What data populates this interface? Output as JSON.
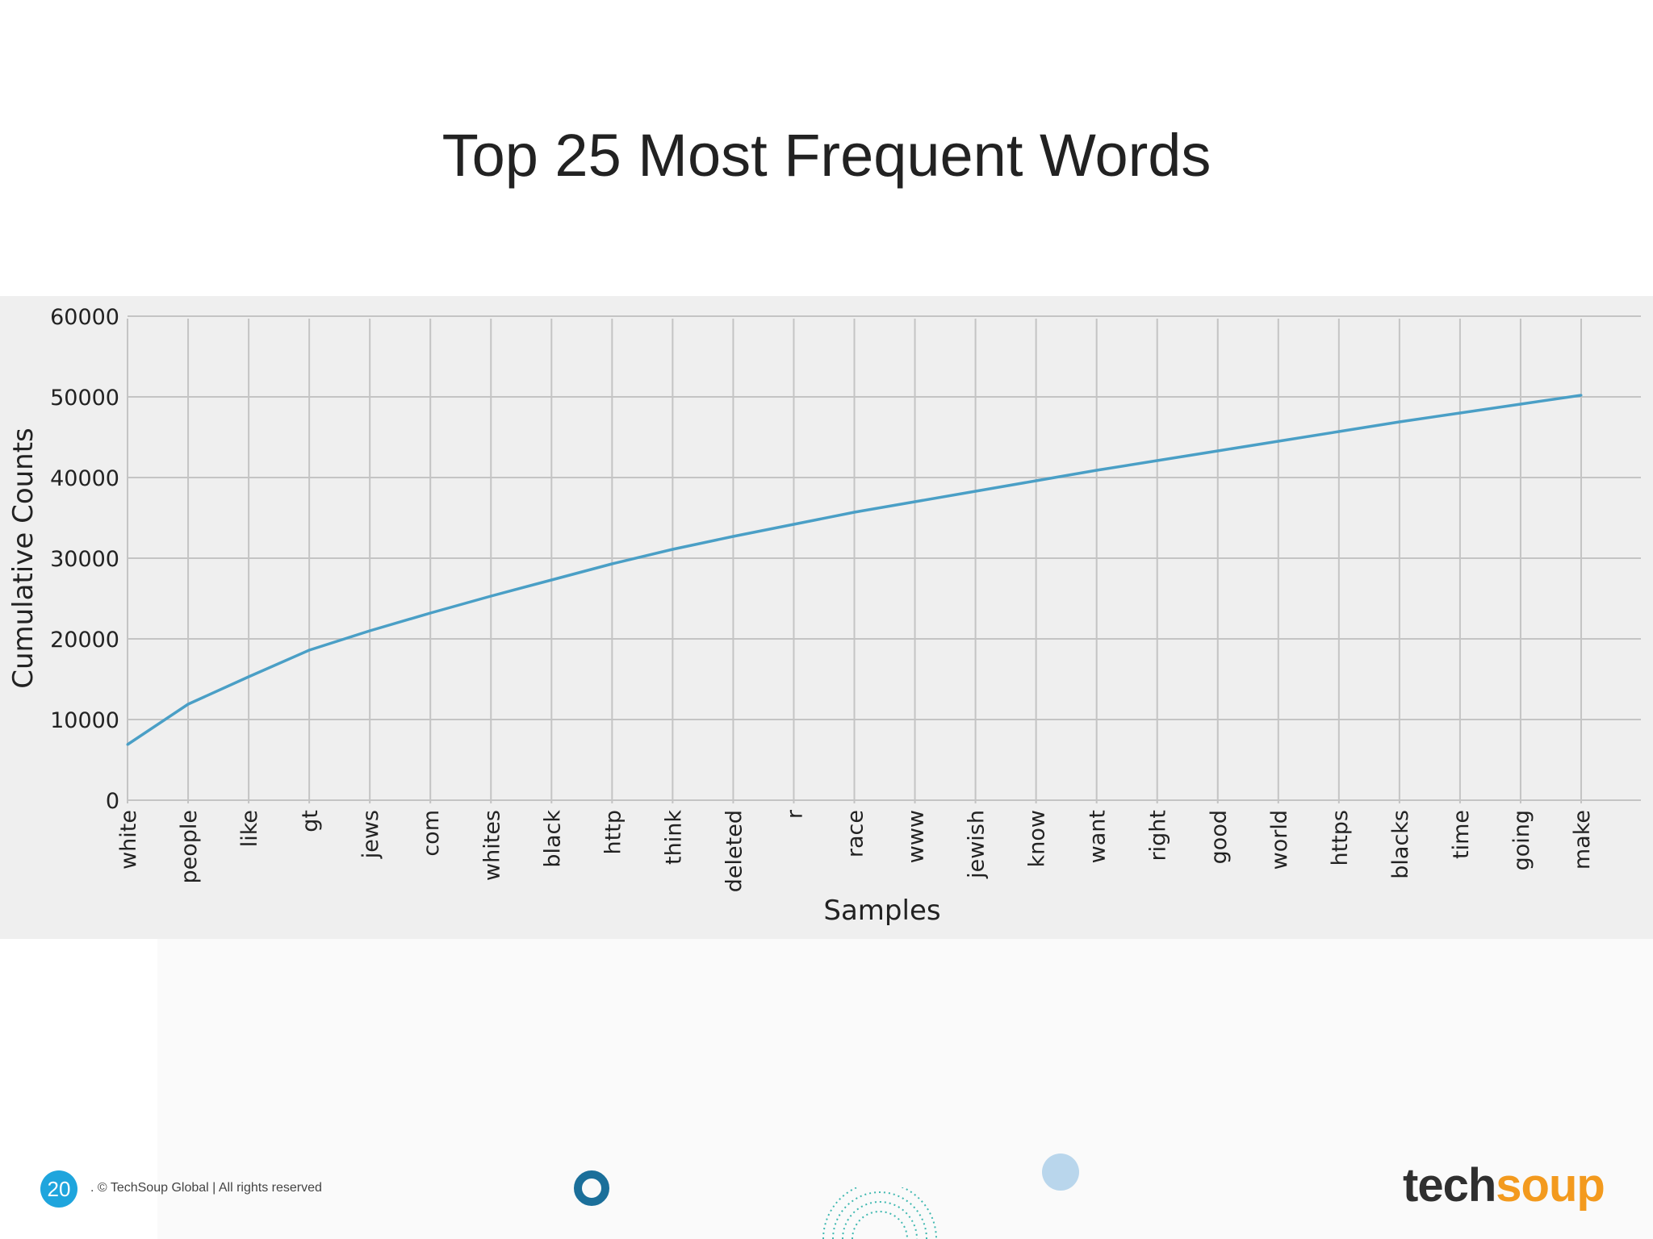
{
  "slide": {
    "title": "Top 25 Most Frequent Words",
    "page_number": "20",
    "copyright": ". © TechSoup Global | All rights reserved",
    "logo_part1": "tech",
    "logo_part2": "soup"
  },
  "colors": {
    "line": "#4a9fc6",
    "grid": "#c4c4c4",
    "chart_bg": "#efefef",
    "badge": "#1fa5dd",
    "logo_orange": "#f39a1e"
  },
  "chart_data": {
    "type": "line",
    "title": "",
    "xlabel": "Samples",
    "ylabel": "Cumulative Counts",
    "ylim": [
      0,
      60000
    ],
    "yticks": [
      0,
      10000,
      20000,
      30000,
      40000,
      50000,
      60000
    ],
    "grid": true,
    "categories": [
      "white",
      "people",
      "like",
      "gt",
      "jews",
      "com",
      "whites",
      "black",
      "http",
      "think",
      "deleted",
      "r",
      "race",
      "www",
      "jewish",
      "know",
      "want",
      "right",
      "good",
      "world",
      "https",
      "blacks",
      "time",
      "going",
      "make"
    ],
    "series": [
      {
        "name": "Cumulative Counts",
        "values": [
          6900,
          11900,
          15300,
          18600,
          21000,
          23200,
          25300,
          27300,
          29300,
          31100,
          32700,
          34200,
          35700,
          37000,
          38300,
          39600,
          40900,
          42100,
          43300,
          44500,
          45700,
          46900,
          48000,
          49100,
          50200
        ]
      }
    ]
  }
}
